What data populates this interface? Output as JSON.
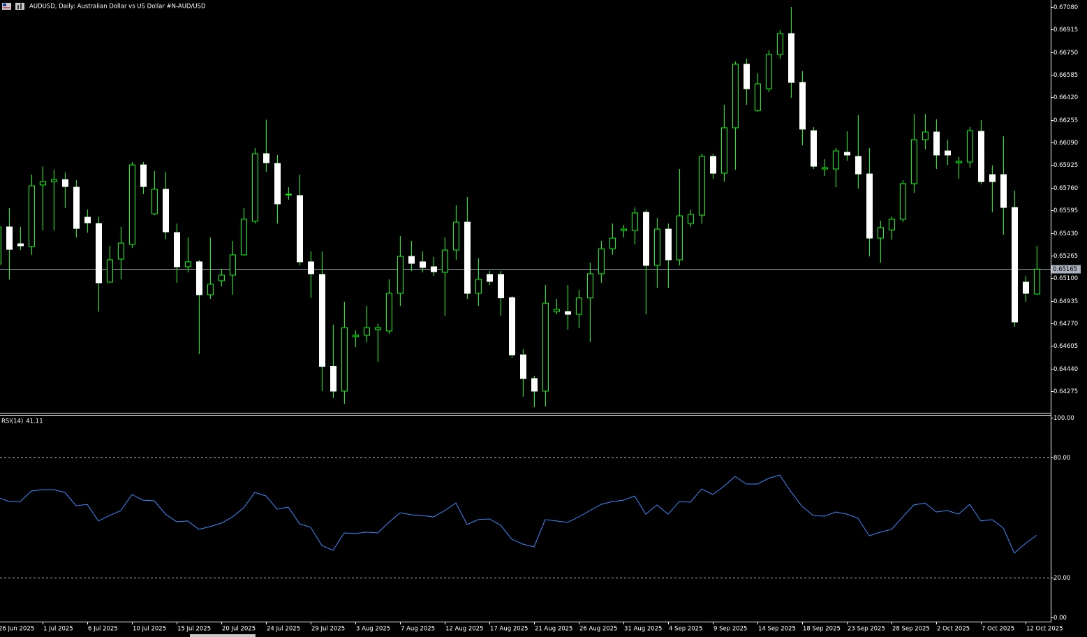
{
  "chart_data": [
    {
      "type": "candlestick",
      "title": "AUDUSD, Daily:  Australian Dollar vs US Dollar #N-AUD/USD",
      "categories": [
        "26 Jun 2025",
        null,
        null,
        null,
        "1 Jul 2025",
        null,
        null,
        null,
        "6 Jul 2025",
        null,
        null,
        null,
        "10 Jul 2025",
        null,
        null,
        null,
        "15 Jul 2025",
        null,
        null,
        null,
        "20 Jul 2025",
        null,
        null,
        null,
        "24 Jul 2025",
        null,
        null,
        null,
        "29 Jul 2025",
        null,
        null,
        null,
        "3 Aug 2025",
        null,
        null,
        null,
        "7 Aug 2025",
        null,
        null,
        null,
        "12 Aug 2025",
        null,
        null,
        null,
        "17 Aug 2025",
        null,
        null,
        null,
        "21 Aug 2025",
        null,
        null,
        null,
        "26 Aug 2025",
        null,
        null,
        null,
        "31 Aug 2025",
        null,
        null,
        null,
        "4 Sep 2025",
        null,
        null,
        null,
        "9 Sep 2025",
        null,
        null,
        null,
        "14 Sep 2025",
        null,
        null,
        null,
        "18 Sep 2025",
        null,
        null,
        null,
        "23 Sep 2025",
        null,
        null,
        null,
        "28 Sep 2025",
        null,
        null,
        null,
        "2 Oct 2025",
        null,
        null,
        null,
        "7 Oct 2025",
        null,
        null,
        null,
        "12 Oct 2025",
        null
      ],
      "open": [
        0.65203,
        0.65474,
        0.65351,
        0.65331,
        0.6578,
        0.65805,
        0.6582,
        0.65764,
        0.65545,
        0.65499,
        0.65071,
        0.65239,
        0.65346,
        0.65927,
        0.6557,
        0.65749,
        0.65433,
        0.65183,
        0.65219,
        0.64979,
        0.65081,
        0.65122,
        0.6527,
        0.65515,
        0.66009,
        0.65938,
        0.65708,
        0.65703,
        0.65219,
        0.65127,
        0.64456,
        0.64275,
        0.64673,
        0.64683,
        0.64724,
        0.64714,
        0.64989,
        0.65259,
        0.65219,
        0.65183,
        0.65142,
        0.65305,
        0.65509,
        0.64989,
        0.65127,
        0.65127,
        0.64958,
        0.6454,
        0.64367,
        0.64275,
        0.64856,
        0.64856,
        0.64836,
        0.64956,
        0.65132,
        0.65315,
        0.65448,
        0.65448,
        0.65581,
        0.65193,
        0.65458,
        0.65234,
        0.65499,
        0.6556,
        0.65989,
        0.65866,
        0.66198,
        0.66662,
        0.66324,
        0.66483,
        0.66733,
        0.66886,
        0.66529,
        0.66177,
        0.65897,
        0.65897,
        0.66019,
        0.65989,
        0.65861,
        0.65392,
        0.65452,
        0.6553,
        0.6579,
        0.66111,
        0.66167,
        0.66029,
        0.65943,
        0.65948,
        0.66172,
        0.65856,
        0.65856,
        0.65616,
        0.65071,
        0.64984
      ],
      "high": [
        0.65611,
        0.65611,
        0.65474,
        0.65856,
        0.65917,
        0.65892,
        0.65871,
        0.65815,
        0.65601,
        0.6555,
        0.65336,
        0.65474,
        0.65948,
        0.65948,
        0.65882,
        0.65877,
        0.65499,
        0.65397,
        0.65234,
        0.65397,
        0.65168,
        0.65372,
        0.65611,
        0.6605,
        0.66257,
        0.65999,
        0.65764,
        0.65856,
        0.65295,
        0.65295,
        0.6476,
        0.64928,
        0.64719,
        0.64897,
        0.64767,
        0.65091,
        0.65407,
        0.65372,
        0.65295,
        0.65254,
        0.65397,
        0.65632,
        0.65693,
        0.65244,
        0.65152,
        0.65152,
        0.64969,
        0.64581,
        0.64387,
        0.6505,
        0.64948,
        0.6505,
        0.65015,
        0.65213,
        0.65372,
        0.65499,
        0.65489,
        0.65616,
        0.65601,
        0.6554,
        0.65499,
        0.65897,
        0.65601,
        0.66009,
        0.66009,
        0.66366,
        0.66683,
        0.66703,
        0.66596,
        0.66764,
        0.66912,
        0.6708,
        0.66611,
        0.66203,
        0.65968,
        0.6605,
        0.66172,
        0.6629,
        0.6605,
        0.65519,
        0.6555,
        0.65815,
        0.663,
        0.663,
        0.66261,
        0.66111,
        0.65984,
        0.66203,
        0.66254,
        0.65922,
        0.66136,
        0.65739,
        0.65116,
        0.65336
      ],
      "low": [
        0.65142,
        0.65091,
        0.65305,
        0.6527,
        0.65448,
        0.65448,
        0.65611,
        0.65397,
        0.65433,
        0.64856,
        0.65066,
        0.65091,
        0.65321,
        0.65713,
        0.6556,
        0.65387,
        0.65066,
        0.65142,
        0.64545,
        0.64948,
        0.6504,
        0.64979,
        0.65265,
        0.65499,
        0.65877,
        0.65499,
        0.65672,
        0.65193,
        0.64956,
        0.64275,
        0.64224,
        0.64183,
        0.64596,
        0.64632,
        0.64489,
        0.64693,
        0.64897,
        0.65152,
        0.65142,
        0.65116,
        0.64826,
        0.65234,
        0.64948,
        0.64897,
        0.6505,
        0.64826,
        0.64519,
        0.64234,
        0.64158,
        0.64163,
        0.64836,
        0.64724,
        0.64734,
        0.64632,
        0.65066,
        0.6527,
        0.65397,
        0.65346,
        0.64836,
        0.6503,
        0.6503,
        0.65193,
        0.65474,
        0.65499,
        0.65826,
        0.65805,
        0.65892,
        0.66366,
        0.66315,
        0.66458,
        0.66703,
        0.66417,
        0.6607,
        0.65897,
        0.65846,
        0.65764,
        0.65958,
        0.65754,
        0.65259,
        0.65213,
        0.65382,
        0.65509,
        0.65723,
        0.6604,
        0.65897,
        0.65927,
        0.65826,
        0.65907,
        0.65785,
        0.65581,
        0.65417,
        0.64745,
        0.64928,
        0.64979
      ],
      "close": [
        0.65474,
        0.6531,
        0.65336,
        0.65774,
        0.65805,
        0.6582,
        0.65769,
        0.65463,
        0.65504,
        0.65066,
        0.65234,
        0.65356,
        0.65927,
        0.65769,
        0.65749,
        0.65438,
        0.65183,
        0.65219,
        0.64979,
        0.65056,
        0.65122,
        0.6527,
        0.6553,
        0.66009,
        0.65943,
        0.65642,
        0.65713,
        0.65219,
        0.65132,
        0.64456,
        0.64275,
        0.64739,
        0.64683,
        0.64739,
        0.64739,
        0.64989,
        0.65259,
        0.65208,
        0.65178,
        0.65147,
        0.65305,
        0.65509,
        0.64989,
        0.65091,
        0.65076,
        0.64956,
        0.6454,
        0.64367,
        0.64275,
        0.64917,
        0.64872,
        0.64836,
        0.64956,
        0.65132,
        0.65315,
        0.65392,
        0.65458,
        0.65576,
        0.65193,
        0.65458,
        0.65234,
        0.65555,
        0.65565,
        0.65989,
        0.65866,
        0.66198,
        0.66662,
        0.66483,
        0.66519,
        0.66733,
        0.66886,
        0.66529,
        0.66188,
        0.65917,
        0.65907,
        0.66029,
        0.65999,
        0.65861,
        0.65392,
        0.65469,
        0.6553,
        0.6579,
        0.66111,
        0.66167,
        0.65999,
        0.65999,
        0.65953,
        0.66177,
        0.65805,
        0.65805,
        0.65616,
        0.6478,
        0.64989,
        0.65165
      ],
      "up_color": "#00ff00",
      "down_color": "#ffffff",
      "wick_color": "#00ff00",
      "current_price": 0.65165,
      "ylim": [
        0.64122,
        0.67131
      ],
      "yticks": [
        {
          "value": 0.6708,
          "label": "0.67080"
        },
        0.66915,
        {
          "value": 0.6675,
          "label": "0.66750"
        },
        0.66585,
        {
          "value": 0.6642,
          "label": "0.66420"
        },
        0.66255,
        {
          "value": 0.6609,
          "label": "0.66090"
        },
        0.65925,
        {
          "value": 0.6576,
          "label": "0.65760"
        },
        0.65595,
        {
          "value": 0.6543,
          "label": "0.65430"
        },
        0.65265,
        {
          "value": 0.651,
          "label": "0.65100"
        },
        0.64935,
        {
          "value": 0.6477,
          "label": "0.64770"
        },
        0.64605,
        {
          "value": 0.6444,
          "label": "0.64440"
        },
        0.64275
      ]
    },
    {
      "type": "line",
      "title": "RSI(14)",
      "values": [
        60.1,
        58.0,
        58.0,
        63.3,
        64.0,
        64.0,
        62.6,
        55.9,
        56.6,
        48.3,
        51.0,
        53.5,
        61.5,
        58.7,
        58.4,
        51.7,
        47.9,
        48.3,
        44.1,
        45.5,
        47.2,
        50.3,
        54.9,
        62.6,
        60.8,
        54.2,
        55.2,
        46.9,
        45.1,
        36.0,
        33.6,
        42.3,
        42.0,
        42.7,
        42.3,
        47.6,
        52.4,
        51.4,
        51.0,
        50.3,
        53.5,
        57.3,
        46.5,
        49.0,
        49.3,
        46.2,
        39.2,
        36.7,
        35.3,
        49.0,
        48.3,
        47.6,
        50.3,
        53.5,
        56.6,
        58.0,
        58.7,
        60.8,
        51.7,
        56.3,
        51.7,
        58.0,
        57.7,
        64.3,
        61.5,
        65.7,
        70.6,
        66.8,
        66.8,
        69.6,
        71.3,
        62.9,
        55.6,
        51.0,
        50.7,
        52.8,
        51.7,
        49.7,
        40.9,
        42.7,
        44.1,
        50.3,
        56.3,
        57.3,
        52.8,
        53.5,
        51.7,
        56.6,
        48.3,
        49.0,
        44.8,
        32.2,
        37.1,
        41.11
      ],
      "color": "#3c8cff",
      "ylim": [
        0,
        100
      ],
      "yticks": [
        {
          "value": 100,
          "label": "100.00"
        },
        {
          "value": 80,
          "label": "80.00"
        },
        {
          "value": 20,
          "label": "20.00"
        },
        {
          "value": 0,
          "label": "0.00"
        }
      ],
      "levels": [
        80,
        20
      ]
    }
  ]
}
